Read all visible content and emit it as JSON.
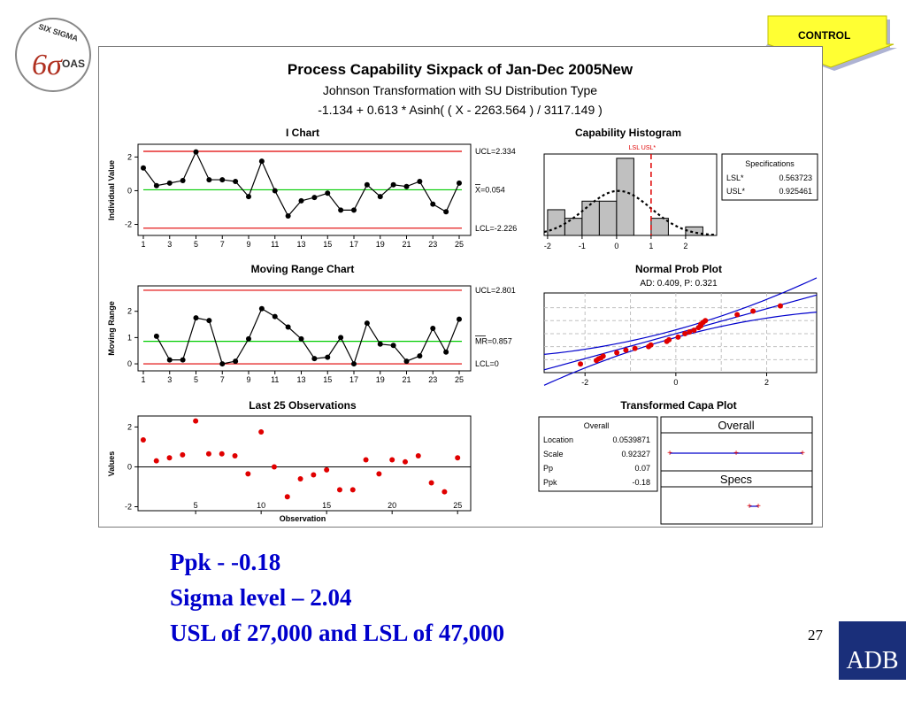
{
  "logo": {
    "top_text": "SIX SIGMA",
    "bottom_text": "OAS",
    "symbol": "6σ"
  },
  "tag": {
    "label": "CONTROL"
  },
  "panel": {
    "title": "Process Capability Sixpack of Jan-Dec 2005New",
    "subtitle1": "Johnson Transformation with SU Distribution Type",
    "subtitle2": "-1.134 + 0.613 * Asinh( ( X - 2263.564 ) / 3117.149 )"
  },
  "colors": {
    "data": "#000000",
    "limits": "#e00000",
    "center": "#00cc00",
    "fit": "#0000cc",
    "obs": "#e00000",
    "bars": "#c0c0c0"
  },
  "chart_data": [
    {
      "type": "line",
      "title": "I Chart",
      "ylabel": "Individual Value",
      "x": [
        1,
        2,
        3,
        4,
        5,
        6,
        7,
        8,
        9,
        10,
        11,
        12,
        13,
        14,
        15,
        16,
        17,
        18,
        19,
        20,
        21,
        22,
        23,
        24,
        25
      ],
      "values": [
        1.35,
        0.3,
        0.45,
        0.6,
        2.3,
        0.65,
        0.65,
        0.55,
        -0.35,
        1.75,
        0.0,
        -1.5,
        -0.6,
        -0.4,
        -0.15,
        -1.15,
        -1.15,
        0.35,
        -0.35,
        0.35,
        0.25,
        0.55,
        -0.8,
        -1.25,
        0.45
      ],
      "xticks": [
        "1",
        "3",
        "5",
        "7",
        "9",
        "11",
        "13",
        "15",
        "17",
        "19",
        "21",
        "23",
        "25"
      ],
      "yticks": [
        -2,
        0,
        2
      ],
      "ylim": [
        -2.55,
        2.65
      ],
      "ucl": 2.334,
      "center": 0.054,
      "lcl": -2.226,
      "ucl_label": "UCL=2.334",
      "center_label": "X=0.054",
      "lcl_label": "LCL=-2.226"
    },
    {
      "type": "line",
      "title": "Moving Range Chart",
      "ylabel": "Moving Range",
      "x": [
        2,
        3,
        4,
        5,
        6,
        7,
        8,
        9,
        10,
        11,
        12,
        13,
        14,
        15,
        16,
        17,
        18,
        19,
        20,
        21,
        22,
        23,
        24,
        25
      ],
      "values": [
        1.05,
        0.15,
        0.15,
        1.75,
        1.65,
        0.0,
        0.1,
        0.95,
        2.1,
        1.8,
        1.4,
        0.95,
        0.2,
        0.25,
        1.0,
        0.0,
        1.55,
        0.75,
        0.7,
        0.1,
        0.3,
        1.35,
        0.45,
        1.7
      ],
      "xticks": [
        "1",
        "3",
        "5",
        "7",
        "9",
        "11",
        "13",
        "15",
        "17",
        "19",
        "21",
        "23",
        "25"
      ],
      "yticks": [
        0,
        1,
        2
      ],
      "ylim": [
        -0.2,
        2.9
      ],
      "ucl": 2.801,
      "center": 0.857,
      "lcl": 0,
      "ucl_label": "UCL=2.801",
      "center_label": "MR=0.857",
      "lcl_label": "LCL=0"
    },
    {
      "type": "scatter",
      "title": "Last 25 Observations",
      "xlabel": "Observation",
      "ylabel": "Values",
      "x": [
        1,
        2,
        3,
        4,
        5,
        6,
        7,
        8,
        9,
        10,
        11,
        12,
        13,
        14,
        15,
        16,
        17,
        18,
        19,
        20,
        21,
        22,
        23,
        24,
        25
      ],
      "values": [
        1.35,
        0.3,
        0.45,
        0.6,
        2.3,
        0.65,
        0.65,
        0.55,
        -0.35,
        1.75,
        0.0,
        -1.5,
        -0.6,
        -0.4,
        -0.15,
        -1.15,
        -1.15,
        0.35,
        -0.35,
        0.35,
        0.25,
        0.55,
        -0.8,
        -1.25,
        0.45
      ],
      "xticks": [
        5,
        10,
        15,
        20,
        25
      ],
      "yticks": [
        -2,
        0,
        2
      ],
      "xlim": [
        0.6,
        26
      ],
      "ylim": [
        -2.2,
        2.55
      ]
    },
    {
      "type": "bar",
      "title": "Capability Histogram",
      "bin_edges": [
        -2.5,
        -2,
        -1.5,
        -1,
        -0.5,
        0,
        0.5,
        1,
        1.5,
        2,
        2.5
      ],
      "values": [
        0,
        3,
        2,
        4,
        4,
        9,
        0,
        2,
        0,
        1
      ],
      "xticks": [
        -2,
        -1,
        0,
        1,
        2
      ],
      "xlim": [
        -2.1,
        2.9
      ],
      "ylim": [
        0,
        9.5
      ],
      "spec_label": "LSL USL*",
      "spec_value": 1.0,
      "specifications": {
        "title": "Specifications",
        "rows": [
          {
            "label": "LSL*",
            "value": "0.563723"
          },
          {
            "label": "USL*",
            "value": "0.925461"
          }
        ]
      }
    },
    {
      "type": "scatter",
      "title": "Normal Prob Plot",
      "annotation": "AD:  0.409,  P:  0.321",
      "x": [
        -2.1,
        -1.75,
        -1.7,
        -1.65,
        -1.6,
        -1.3,
        -1.1,
        -0.9,
        -0.6,
        -0.55,
        -0.2,
        -0.15,
        0.05,
        0.2,
        0.3,
        0.4,
        0.5,
        0.55,
        0.55,
        0.6,
        0.65,
        1.35,
        1.7,
        2.3
      ],
      "values": [
        -1.75,
        -1.55,
        -1.45,
        -1.4,
        -1.3,
        -1.1,
        -0.95,
        -0.85,
        -0.75,
        -0.65,
        -0.45,
        -0.35,
        -0.2,
        0.0,
        0.1,
        0.2,
        0.35,
        0.45,
        0.55,
        0.65,
        0.75,
        1.1,
        1.3,
        1.6
      ],
      "xticks": [
        -2,
        0,
        2
      ],
      "xlim": [
        -2.9,
        3.1
      ],
      "ylim": [
        -2.25,
        2.35
      ]
    },
    {
      "type": "table",
      "title": "Transformed Capa Plot",
      "overall_header": "Overall",
      "rows": [
        {
          "label": "Location",
          "value": "0.0539871"
        },
        {
          "label": "Scale",
          "value": "0.92327"
        },
        {
          "label": "Pp",
          "value": "0.07"
        },
        {
          "label": "Ppk",
          "value": "-0.18"
        }
      ],
      "overall_panel": "Overall",
      "specs_panel": "Specs"
    }
  ],
  "notes": {
    "line1": "Ppk - -0.18",
    "line2": "Sigma level – 2.04",
    "line3": "USL of 27,000 and LSL of 47,000"
  },
  "footer": {
    "page_number": "27",
    "brand": "ADB"
  }
}
